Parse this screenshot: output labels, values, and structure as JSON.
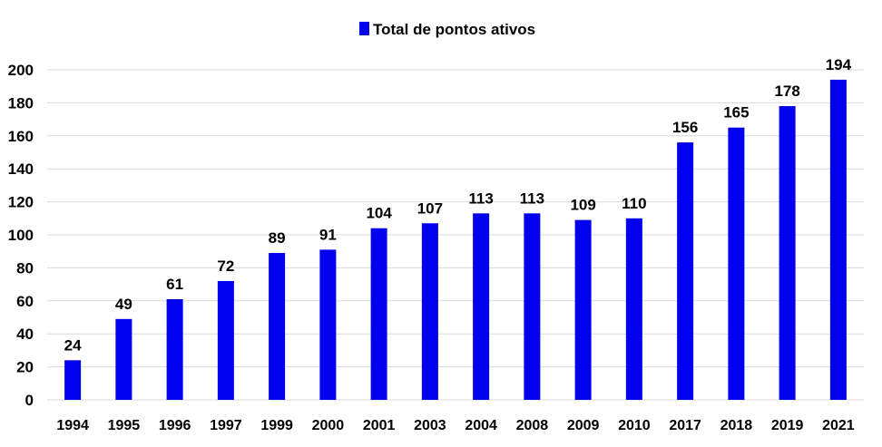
{
  "chart_data": {
    "type": "bar",
    "categories": [
      "1994",
      "1995",
      "1996",
      "1997",
      "1999",
      "2000",
      "2001",
      "2003",
      "2004",
      "2008",
      "2009",
      "2010",
      "2017",
      "2018",
      "2019",
      "2021"
    ],
    "series": [
      {
        "name": "Total de pontos ativos",
        "values": [
          24,
          49,
          61,
          72,
          89,
          91,
          104,
          107,
          113,
          113,
          109,
          110,
          156,
          165,
          178,
          194
        ]
      }
    ],
    "title": "",
    "xlabel": "",
    "ylabel": "",
    "ylim": [
      0,
      200
    ],
    "yticks": [
      0,
      20,
      40,
      60,
      80,
      100,
      120,
      140,
      160,
      180,
      200
    ],
    "grid": true,
    "legend_position": "top-center",
    "data_labels": true,
    "colors": {
      "bar": "#0000ee",
      "grid": "#d9d9d9",
      "text": "#000000"
    }
  }
}
